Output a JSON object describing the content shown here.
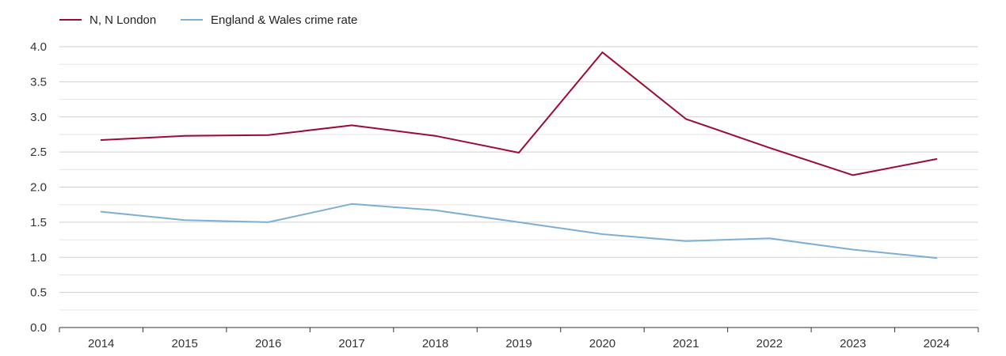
{
  "chart_data": {
    "type": "line",
    "title": "",
    "xlabel": "",
    "ylabel": "",
    "categories": [
      "2014",
      "2015",
      "2016",
      "2017",
      "2018",
      "2019",
      "2020",
      "2021",
      "2022",
      "2023",
      "2024"
    ],
    "ylim": [
      0,
      4.0
    ],
    "yticks": [
      "0.0",
      "0.5",
      "1.0",
      "1.5",
      "2.0",
      "2.5",
      "3.0",
      "3.5",
      "4.0"
    ],
    "grid": true,
    "legend_position": "top-left",
    "series": [
      {
        "name": "N, N London",
        "color": "#9b0b34",
        "values": [
          2.67,
          2.73,
          2.74,
          2.88,
          2.73,
          2.49,
          3.92,
          2.97,
          2.56,
          2.17,
          2.4
        ]
      },
      {
        "name": "England & Wales crime rate",
        "color": "#7bafd4",
        "values": [
          1.65,
          1.53,
          1.5,
          1.76,
          1.67,
          1.5,
          1.33,
          1.23,
          1.27,
          1.11,
          0.99
        ]
      }
    ]
  }
}
